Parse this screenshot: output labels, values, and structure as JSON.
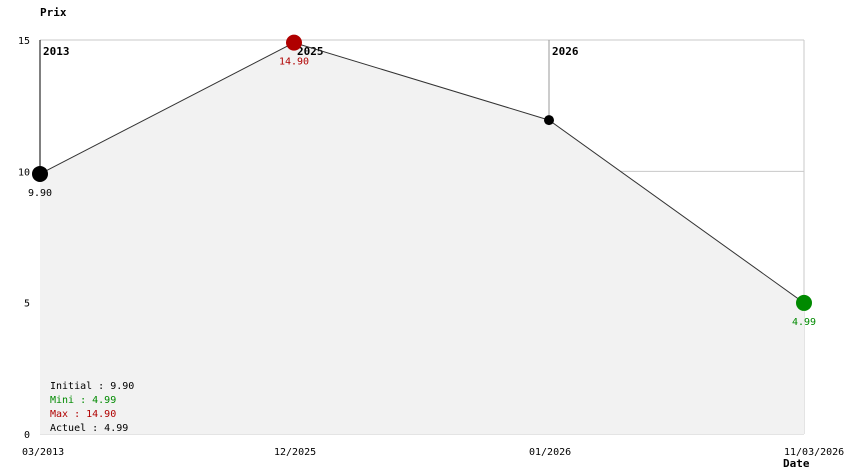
{
  "chart_data": {
    "type": "line",
    "ylabel": "Prix",
    "xlabel": "Date",
    "ylim": [
      0,
      15
    ],
    "y_ticks": [
      "0",
      "5",
      "10",
      "15"
    ],
    "x_tick_labels": [
      "03/2013",
      "12/2025",
      "01/2026",
      "11/03/2026"
    ],
    "year_markers": [
      "2013",
      "2025",
      "2026"
    ],
    "grid": true,
    "area_fill": true,
    "points": [
      {
        "x": "03/2013",
        "y": 9.9,
        "label": "9.90",
        "kind": "initial"
      },
      {
        "x": "12/2025",
        "y": 14.9,
        "label": "14.90",
        "kind": "max"
      },
      {
        "x": "01/2026",
        "y": 11.95,
        "label": "",
        "kind": "normal"
      },
      {
        "x": "11/03/2026",
        "y": 4.99,
        "label": "4.99",
        "kind": "min"
      }
    ],
    "legend": {
      "placement": "bottom-left",
      "initial": "Initial : 9.90",
      "mini": "Mini : 4.99",
      "max": "Max : 14.90",
      "actuel": "Actuel : 4.99"
    },
    "colors": {
      "fill": "#f2f2f2",
      "grid": "#c8c8c8",
      "line": "#333333",
      "initial": "#000000",
      "max": "#b00000",
      "min": "#008a00",
      "normal": "#000000"
    }
  }
}
